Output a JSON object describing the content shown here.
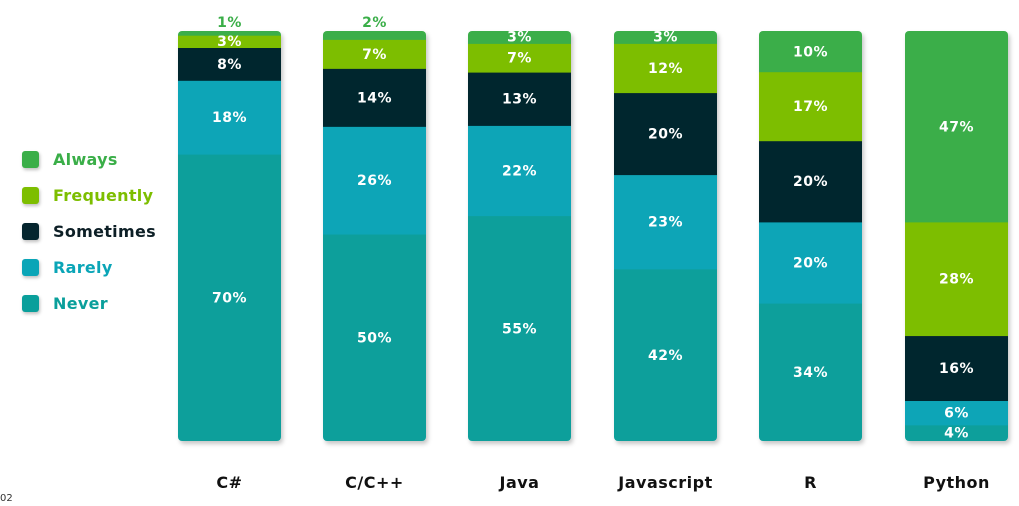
{
  "chart_data": {
    "type": "bar",
    "stacked": true,
    "normalized": true,
    "categories": [
      "C#",
      "C/C++",
      "Java",
      "Javascript",
      "R",
      "Python"
    ],
    "series": [
      {
        "name": "Never",
        "color": "#0a9f9b",
        "values": [
          70,
          50,
          55,
          42,
          34,
          4
        ],
        "labels": [
          "70%",
          "50%",
          "55%",
          "42%",
          "34%",
          "4%"
        ]
      },
      {
        "name": "Rarely",
        "color": "#0aa5b7",
        "values": [
          18,
          26,
          22,
          23,
          20,
          6
        ],
        "labels": [
          "18%",
          "26%",
          "22%",
          "23%",
          "20%",
          "6%"
        ]
      },
      {
        "name": "Sometimes",
        "color": "#05252e",
        "values": [
          8,
          14,
          13,
          20,
          20,
          16
        ],
        "labels": [
          "8%",
          "14%",
          "13%",
          "20%",
          "20%",
          "16%"
        ]
      },
      {
        "name": "Frequently",
        "color": "#7dbe00",
        "values": [
          3,
          7,
          7,
          12,
          17,
          28
        ],
        "labels": [
          "3%",
          "7%",
          "7%",
          "12%",
          "17%",
          "28%"
        ]
      },
      {
        "name": "Always",
        "color": "#3aae48",
        "values": [
          1,
          2,
          3,
          3,
          10,
          47
        ],
        "labels": [
          "1%",
          "2%",
          "3%",
          "3%",
          "10%",
          "47%"
        ]
      }
    ],
    "legend_order": [
      "Always",
      "Frequently",
      "Sometimes",
      "Rarely",
      "Never"
    ],
    "legend_position": "left",
    "ylim": [
      0,
      100
    ],
    "grid": false
  },
  "footnote": "02"
}
